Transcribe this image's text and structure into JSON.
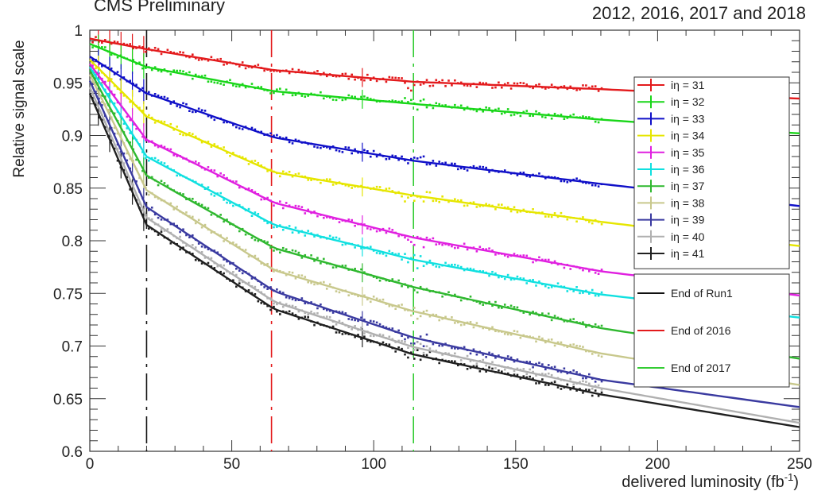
{
  "header": {
    "left_text": "CMS Preliminary",
    "right_text": "2012, 2016, 2017 and 2018"
  },
  "chart_data": {
    "type": "scatter",
    "xlabel_main": "delivered luminosity (fb",
    "xlabel_sup": "-1",
    "xlabel_tail": ")",
    "ylabel": "Relative signal scale",
    "xlim": [
      0,
      250
    ],
    "ylim": [
      0.6,
      1.0
    ],
    "x_ticks": [
      0,
      50,
      100,
      150,
      200,
      250
    ],
    "x_tick_labels": [
      "0",
      "50",
      "100",
      "150",
      "200",
      "250"
    ],
    "y_ticks": [
      0.6,
      0.65,
      0.7,
      0.75,
      0.8,
      0.85,
      0.9,
      0.95,
      1.0
    ],
    "y_tick_labels": [
      "0.6",
      "0.65",
      "0.7",
      "0.75",
      "0.8",
      "0.85",
      "0.9",
      "0.95",
      "1"
    ],
    "grid": false,
    "legend_position": "right",
    "series": [
      {
        "name": "iη = 31",
        "color": "#e31a1c",
        "fit": {
          "x": [
            0,
            20,
            65,
            114,
            180,
            250
          ],
          "y": [
            0.992,
            0.982,
            0.962,
            0.951,
            0.944,
            0.935
          ]
        }
      },
      {
        "name": "iη = 32",
        "color": "#19d619",
        "fit": {
          "x": [
            0,
            20,
            65,
            114,
            180,
            250
          ],
          "y": [
            0.987,
            0.965,
            0.942,
            0.93,
            0.915,
            0.902
          ]
        }
      },
      {
        "name": "iη = 33",
        "color": "#1010c8",
        "fit": {
          "x": [
            0,
            20,
            65,
            114,
            180,
            250
          ],
          "y": [
            0.975,
            0.94,
            0.898,
            0.876,
            0.854,
            0.833
          ]
        }
      },
      {
        "name": "iη = 34",
        "color": "#e6e600",
        "fit": {
          "x": [
            0,
            20,
            65,
            114,
            180,
            250
          ],
          "y": [
            0.972,
            0.918,
            0.865,
            0.843,
            0.818,
            0.795
          ]
        }
      },
      {
        "name": "iη = 35",
        "color": "#e020e0",
        "fit": {
          "x": [
            0,
            20,
            65,
            114,
            180,
            250
          ],
          "y": [
            0.968,
            0.896,
            0.836,
            0.803,
            0.771,
            0.748
          ]
        }
      },
      {
        "name": "iη = 36",
        "color": "#10e0e0",
        "fit": {
          "x": [
            0,
            20,
            65,
            114,
            180,
            250
          ],
          "y": [
            0.965,
            0.88,
            0.815,
            0.782,
            0.749,
            0.727
          ]
        }
      },
      {
        "name": "iη = 37",
        "color": "#2fb82f",
        "fit": {
          "x": [
            0,
            20,
            65,
            114,
            180,
            250
          ],
          "y": [
            0.962,
            0.862,
            0.793,
            0.756,
            0.717,
            0.688
          ]
        }
      },
      {
        "name": "iη = 38",
        "color": "#c8c88c",
        "fit": {
          "x": [
            0,
            20,
            65,
            114,
            180,
            250
          ],
          "y": [
            0.958,
            0.848,
            0.772,
            0.733,
            0.693,
            0.663
          ]
        }
      },
      {
        "name": "iη = 39",
        "color": "#3a3aa0",
        "fit": {
          "x": [
            0,
            20,
            65,
            114,
            180,
            250
          ],
          "y": [
            0.952,
            0.832,
            0.752,
            0.708,
            0.668,
            0.642
          ]
        }
      },
      {
        "name": "iη = 40",
        "color": "#b0b0b0",
        "fit": {
          "x": [
            0,
            20,
            65,
            114,
            180,
            250
          ],
          "y": [
            0.946,
            0.822,
            0.742,
            0.699,
            0.66,
            0.627
          ]
        }
      },
      {
        "name": "iη = 41",
        "color": "#202020",
        "fit": {
          "x": [
            0,
            20,
            65,
            114,
            180,
            250
          ],
          "y": [
            0.94,
            0.815,
            0.735,
            0.692,
            0.654,
            0.623
          ]
        }
      }
    ],
    "vertical_lines": [
      {
        "x": 20,
        "label": "End of Run1",
        "color": "#111111"
      },
      {
        "x": 64,
        "label": "End of 2016",
        "color": "#e31a1c"
      },
      {
        "x": 114,
        "label": "End of 2017",
        "color": "#33cc33"
      }
    ]
  }
}
